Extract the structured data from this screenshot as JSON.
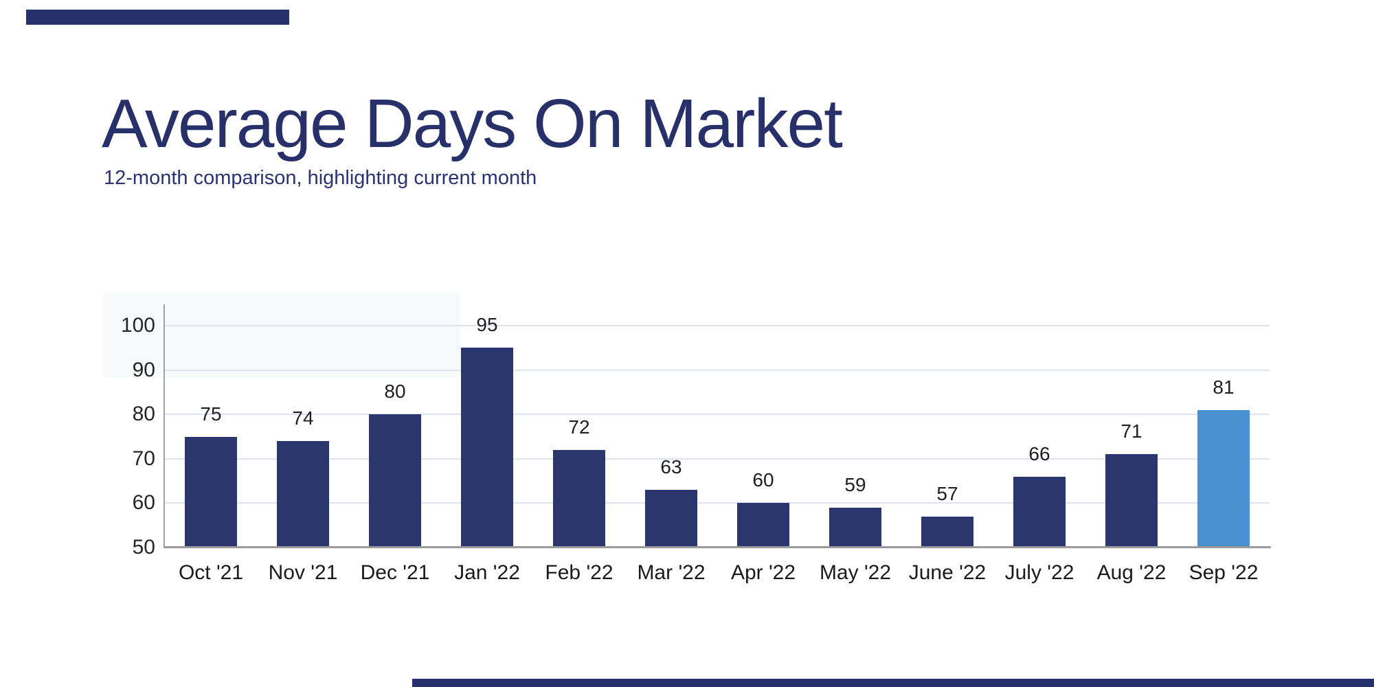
{
  "page": {
    "title": "Average Days On Market",
    "subtitle": "12-month comparison, highlighting current month",
    "accent_color": "#26306b"
  },
  "chart_data": {
    "type": "bar",
    "title": "Average Days On Market",
    "subtitle": "12-month comparison, highlighting current month",
    "categories": [
      "Oct '21",
      "Nov '21",
      "Dec '21",
      "Jan '22",
      "Feb '22",
      "Mar '22",
      "Apr '22",
      "May '22",
      "June '22",
      "July '22",
      "Aug '22",
      "Sep '22"
    ],
    "values": [
      75,
      74,
      80,
      95,
      72,
      63,
      60,
      59,
      57,
      66,
      71,
      81
    ],
    "highlight_index": 11,
    "bar_color": "#2b356e",
    "highlight_color": "#4b90d0",
    "y_ticks": [
      50,
      60,
      70,
      80,
      90,
      100
    ],
    "ylim": [
      50,
      100
    ],
    "xlabel": "",
    "ylabel": "",
    "grid": "horizontal-light",
    "gridline_color": "#dde4ef",
    "legend": "none",
    "value_labels_shown": true
  }
}
